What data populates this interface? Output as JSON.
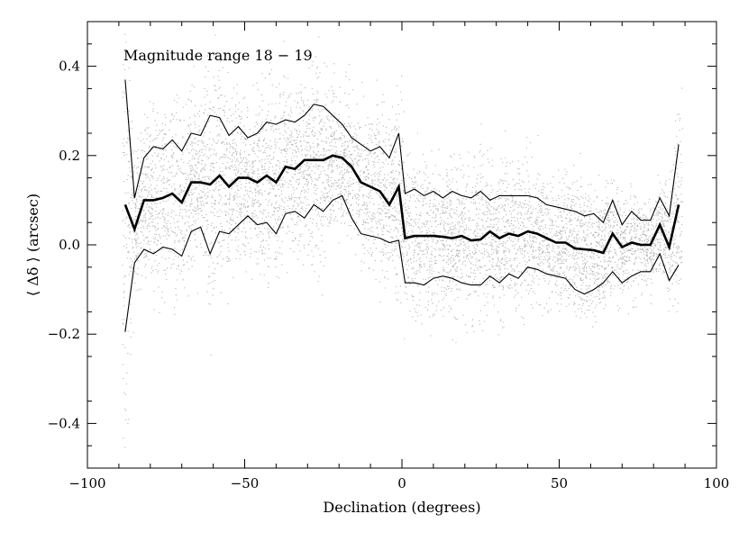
{
  "chart_data": {
    "type": "line",
    "title": "",
    "xlabel": "Declination (degrees)",
    "ylabel": "⟨ Δδ ⟩ (arcsec)",
    "xlim": [
      -100,
      100
    ],
    "ylim": [
      -0.5,
      0.5
    ],
    "x_ticks": [
      -100,
      -50,
      0,
      50,
      100
    ],
    "x_tick_labels": [
      "−100",
      "−50",
      "0",
      "50",
      "100"
    ],
    "y_ticks": [
      -0.4,
      -0.2,
      0.0,
      0.2,
      0.4
    ],
    "y_tick_labels": [
      "−0.4",
      "−0.2",
      "0.0",
      "0.2",
      "0.4"
    ],
    "grid": false,
    "annotation": "Magnitude range 18 − 19",
    "scatter_color": "#b8b8b8",
    "line_color": "#000000",
    "x": [
      -88,
      -85,
      -82,
      -79,
      -76,
      -73,
      -70,
      -67,
      -64,
      -61,
      -58,
      -55,
      -52,
      -49,
      -46,
      -43,
      -40,
      -37,
      -34,
      -31,
      -28,
      -25,
      -22,
      -19,
      -16,
      -13,
      -10,
      -7,
      -4,
      -1,
      1,
      4,
      7,
      10,
      13,
      16,
      19,
      22,
      25,
      28,
      31,
      34,
      37,
      40,
      43,
      46,
      49,
      52,
      55,
      58,
      61,
      64,
      67,
      70,
      73,
      76,
      79,
      82,
      85,
      88
    ],
    "series": [
      {
        "values": [
          0.09,
          0.035,
          0.1,
          0.1,
          0.105,
          0.115,
          0.095,
          0.14,
          0.14,
          0.135,
          0.155,
          0.13,
          0.15,
          0.15,
          0.14,
          0.155,
          0.14,
          0.175,
          0.17,
          0.19,
          0.19,
          0.19,
          0.2,
          0.195,
          0.175,
          0.14,
          0.13,
          0.12,
          0.09,
          0.13,
          0.015,
          0.02,
          0.02,
          0.02,
          0.018,
          0.015,
          0.02,
          0.01,
          0.012,
          0.03,
          0.015,
          0.025,
          0.02,
          0.03,
          0.025,
          0.015,
          0.005,
          0.005,
          -0.008,
          -0.01,
          -0.012,
          -0.018,
          0.025,
          -0.005,
          0.005,
          0.0,
          0.0,
          0.045,
          -0.005,
          0.09
        ]
      },
      {
        "values": [
          0.37,
          0.105,
          0.195,
          0.22,
          0.215,
          0.235,
          0.21,
          0.25,
          0.245,
          0.29,
          0.285,
          0.245,
          0.265,
          0.24,
          0.25,
          0.275,
          0.27,
          0.28,
          0.275,
          0.29,
          0.315,
          0.31,
          0.29,
          0.27,
          0.24,
          0.225,
          0.21,
          0.22,
          0.195,
          0.25,
          0.115,
          0.125,
          0.11,
          0.12,
          0.105,
          0.12,
          0.11,
          0.105,
          0.12,
          0.1,
          0.11,
          0.11,
          0.11,
          0.11,
          0.105,
          0.09,
          0.085,
          0.08,
          0.075,
          0.065,
          0.07,
          0.05,
          0.1,
          0.045,
          0.075,
          0.055,
          0.055,
          0.105,
          0.065,
          0.225
        ]
      },
      {
        "values": [
          -0.195,
          -0.04,
          -0.01,
          -0.02,
          -0.005,
          -0.01,
          -0.025,
          0.03,
          0.04,
          -0.02,
          0.03,
          0.025,
          0.045,
          0.065,
          0.045,
          0.05,
          0.025,
          0.07,
          0.075,
          0.06,
          0.09,
          0.075,
          0.1,
          0.11,
          0.06,
          0.025,
          0.02,
          0.015,
          0.005,
          0.01,
          -0.085,
          -0.085,
          -0.09,
          -0.075,
          -0.07,
          -0.075,
          -0.085,
          -0.09,
          -0.09,
          -0.07,
          -0.085,
          -0.065,
          -0.075,
          -0.05,
          -0.055,
          -0.065,
          -0.07,
          -0.075,
          -0.1,
          -0.11,
          -0.1,
          -0.085,
          -0.06,
          -0.085,
          -0.07,
          -0.06,
          -0.06,
          -0.02,
          -0.08,
          -0.045
        ]
      }
    ]
  }
}
